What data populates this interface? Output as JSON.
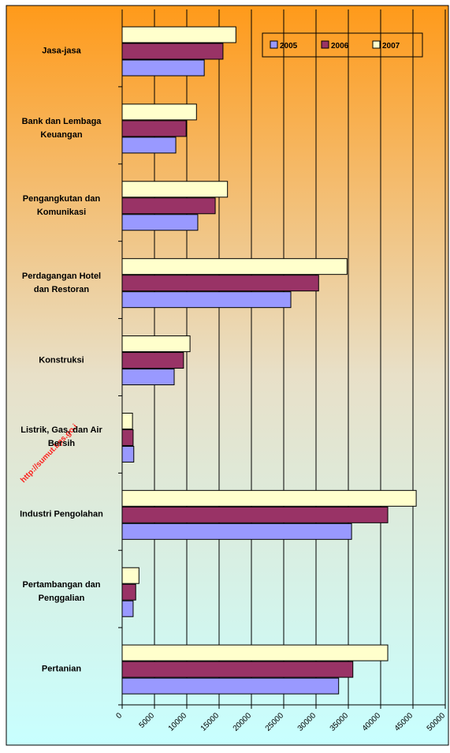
{
  "chart_data": {
    "type": "bar",
    "orientation": "horizontal",
    "categories": [
      "Jasa-jasa",
      "Bank dan Lembaga\nKeuangan",
      "Pengangkutan dan\nKomunikasi",
      "Perdagangan Hotel\ndan Restoran",
      "Konstruksi",
      "Listrik, Gas, dan Air\nBersih",
      "Industri Pengolahan",
      "Pertambangan dan\nPenggalian",
      "Pertanian"
    ],
    "series": [
      {
        "name": "2005",
        "color": "#9999ff",
        "values": [
          12700,
          8300,
          11700,
          26100,
          8050,
          1800,
          35500,
          1700,
          33500
        ]
      },
      {
        "name": "2006",
        "color": "#993366",
        "values": [
          15600,
          9900,
          14400,
          30400,
          9500,
          1700,
          41100,
          2100,
          35700
        ]
      },
      {
        "name": "2007",
        "color": "#ffffcc",
        "values": [
          17600,
          11500,
          16300,
          34800,
          10500,
          1600,
          45500,
          2600,
          41100
        ]
      }
    ],
    "xlim": [
      0,
      50000
    ],
    "xticks": [
      0,
      5000,
      10000,
      15000,
      20000,
      25000,
      30000,
      35000,
      40000,
      45000,
      50000
    ],
    "grid": true,
    "legend": "top-right",
    "watermark": "http://sumut.bps.go.i"
  }
}
